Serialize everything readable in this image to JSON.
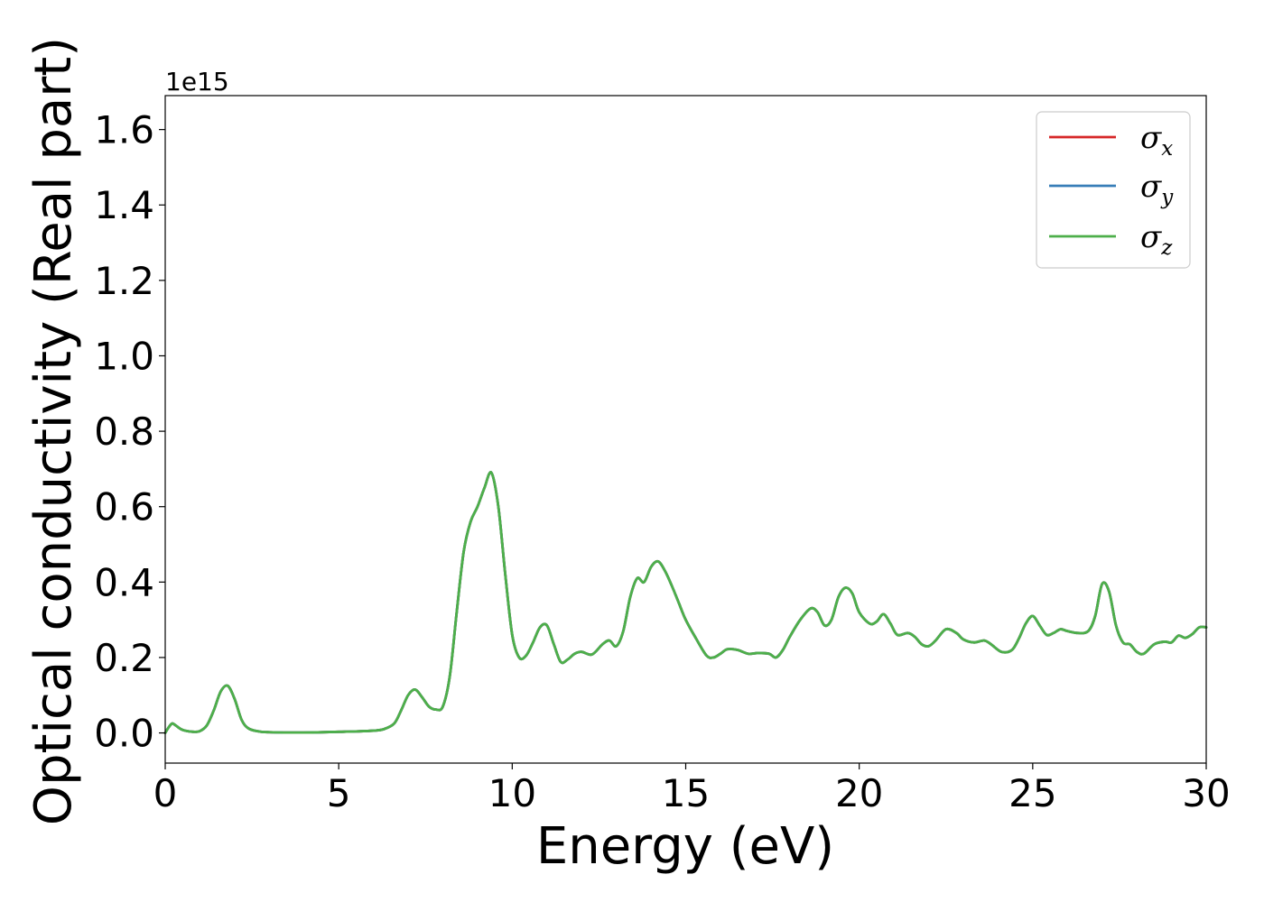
{
  "chart_data": {
    "type": "line",
    "title": "",
    "xlabel": "Energy (eV)",
    "ylabel": "Optical conductivity (Real part)",
    "y_offset_text": "1e15",
    "y_scale": 1000000000000000.0,
    "xlim": [
      0,
      30
    ],
    "ylim": [
      -0.08,
      1.69
    ],
    "xticks": [
      0,
      5,
      10,
      15,
      20,
      25,
      30
    ],
    "xtick_labels": [
      "0",
      "5",
      "10",
      "15",
      "20",
      "25",
      "30"
    ],
    "yticks": [
      0.0,
      0.2,
      0.4,
      0.6,
      0.8,
      1.0,
      1.2,
      1.4,
      1.6
    ],
    "ytick_labels": [
      "0.0",
      "0.2",
      "0.4",
      "0.6",
      "0.8",
      "1.0",
      "1.2",
      "1.4",
      "1.6"
    ],
    "grid": false,
    "legend_position": "top-right",
    "x": [
      0,
      0.1,
      0.2,
      0.3,
      0.5,
      0.8,
      1.0,
      1.2,
      1.4,
      1.6,
      1.8,
      2.0,
      2.2,
      2.4,
      2.7,
      3.0,
      4.0,
      5.0,
      5.5,
      6.0,
      6.3,
      6.6,
      6.8,
      7.0,
      7.2,
      7.4,
      7.6,
      7.8,
      8.0,
      8.2,
      8.4,
      8.6,
      8.8,
      9.0,
      9.2,
      9.4,
      9.6,
      9.8,
      10.0,
      10.2,
      10.4,
      10.6,
      10.8,
      11.0,
      11.2,
      11.4,
      11.6,
      11.8,
      12.0,
      12.3,
      12.6,
      12.8,
      13.0,
      13.2,
      13.4,
      13.6,
      13.8,
      14.0,
      14.2,
      14.4,
      14.6,
      14.8,
      15.0,
      15.3,
      15.6,
      15.8,
      16.0,
      16.2,
      16.5,
      16.8,
      17.1,
      17.4,
      17.6,
      17.8,
      18.0,
      18.3,
      18.6,
      18.8,
      19.0,
      19.2,
      19.4,
      19.6,
      19.8,
      20.0,
      20.3,
      20.5,
      20.7,
      20.9,
      21.1,
      21.4,
      21.6,
      21.8,
      22.0,
      22.2,
      22.5,
      22.8,
      23.0,
      23.3,
      23.6,
      23.8,
      24.1,
      24.4,
      24.6,
      24.8,
      25.0,
      25.2,
      25.4,
      25.6,
      25.8,
      26.0,
      26.3,
      26.6,
      26.8,
      27.0,
      27.2,
      27.4,
      27.6,
      27.8,
      28.0,
      28.2,
      28.5,
      28.8,
      29.0,
      29.2,
      29.4,
      29.6,
      29.8,
      30.0
    ],
    "series": [
      {
        "name": "σx",
        "color": "#d62728",
        "values": [
          0.0,
          0.015,
          0.025,
          0.02,
          0.008,
          0.003,
          0.005,
          0.02,
          0.06,
          0.11,
          0.125,
          0.09,
          0.035,
          0.012,
          0.004,
          0.002,
          0.001,
          0.003,
          0.004,
          0.006,
          0.01,
          0.025,
          0.06,
          0.1,
          0.115,
          0.095,
          0.07,
          0.062,
          0.07,
          0.15,
          0.32,
          0.48,
          0.56,
          0.6,
          0.65,
          0.69,
          0.6,
          0.42,
          0.26,
          0.2,
          0.205,
          0.24,
          0.28,
          0.285,
          0.235,
          0.188,
          0.195,
          0.21,
          0.215,
          0.208,
          0.235,
          0.245,
          0.23,
          0.27,
          0.36,
          0.41,
          0.4,
          0.44,
          0.455,
          0.43,
          0.39,
          0.345,
          0.3,
          0.25,
          0.205,
          0.2,
          0.21,
          0.222,
          0.22,
          0.21,
          0.212,
          0.21,
          0.2,
          0.22,
          0.255,
          0.3,
          0.33,
          0.32,
          0.285,
          0.3,
          0.36,
          0.385,
          0.37,
          0.32,
          0.29,
          0.295,
          0.315,
          0.29,
          0.26,
          0.265,
          0.255,
          0.235,
          0.23,
          0.245,
          0.275,
          0.265,
          0.248,
          0.24,
          0.245,
          0.235,
          0.215,
          0.22,
          0.25,
          0.29,
          0.31,
          0.285,
          0.26,
          0.265,
          0.275,
          0.27,
          0.265,
          0.27,
          0.31,
          0.395,
          0.375,
          0.285,
          0.24,
          0.235,
          0.215,
          0.21,
          0.235,
          0.242,
          0.24,
          0.258,
          0.252,
          0.262,
          0.28,
          0.28
        ]
      },
      {
        "name": "σy",
        "color": "#377eb8",
        "values": [
          0.0,
          0.015,
          0.025,
          0.02,
          0.008,
          0.003,
          0.005,
          0.02,
          0.06,
          0.11,
          0.125,
          0.09,
          0.035,
          0.012,
          0.004,
          0.002,
          0.001,
          0.003,
          0.004,
          0.006,
          0.01,
          0.025,
          0.06,
          0.1,
          0.115,
          0.095,
          0.07,
          0.062,
          0.07,
          0.15,
          0.32,
          0.48,
          0.56,
          0.6,
          0.65,
          0.69,
          0.6,
          0.42,
          0.26,
          0.2,
          0.205,
          0.24,
          0.28,
          0.285,
          0.235,
          0.188,
          0.195,
          0.21,
          0.215,
          0.208,
          0.235,
          0.245,
          0.23,
          0.27,
          0.36,
          0.41,
          0.4,
          0.44,
          0.455,
          0.43,
          0.39,
          0.345,
          0.3,
          0.25,
          0.205,
          0.2,
          0.21,
          0.222,
          0.22,
          0.21,
          0.212,
          0.21,
          0.2,
          0.22,
          0.255,
          0.3,
          0.33,
          0.32,
          0.285,
          0.3,
          0.36,
          0.385,
          0.37,
          0.32,
          0.29,
          0.295,
          0.315,
          0.29,
          0.26,
          0.265,
          0.255,
          0.235,
          0.23,
          0.245,
          0.275,
          0.265,
          0.248,
          0.24,
          0.245,
          0.235,
          0.215,
          0.22,
          0.25,
          0.29,
          0.31,
          0.285,
          0.26,
          0.265,
          0.275,
          0.27,
          0.265,
          0.27,
          0.31,
          0.395,
          0.375,
          0.285,
          0.24,
          0.235,
          0.215,
          0.21,
          0.235,
          0.242,
          0.24,
          0.258,
          0.252,
          0.262,
          0.28,
          0.28
        ]
      },
      {
        "name": "σz",
        "color": "#4daf4a",
        "values": [
          0.0,
          0.015,
          0.025,
          0.02,
          0.008,
          0.003,
          0.005,
          0.02,
          0.06,
          0.11,
          0.125,
          0.09,
          0.035,
          0.012,
          0.004,
          0.002,
          0.001,
          0.003,
          0.004,
          0.006,
          0.01,
          0.025,
          0.06,
          0.1,
          0.115,
          0.095,
          0.07,
          0.062,
          0.07,
          0.15,
          0.32,
          0.48,
          0.56,
          0.6,
          0.65,
          0.69,
          0.6,
          0.42,
          0.26,
          0.2,
          0.205,
          0.24,
          0.28,
          0.285,
          0.235,
          0.188,
          0.195,
          0.21,
          0.215,
          0.208,
          0.235,
          0.245,
          0.23,
          0.27,
          0.36,
          0.41,
          0.4,
          0.44,
          0.455,
          0.43,
          0.39,
          0.345,
          0.3,
          0.25,
          0.205,
          0.2,
          0.21,
          0.222,
          0.22,
          0.21,
          0.212,
          0.21,
          0.2,
          0.22,
          0.255,
          0.3,
          0.33,
          0.32,
          0.285,
          0.3,
          0.36,
          0.385,
          0.37,
          0.32,
          0.29,
          0.295,
          0.315,
          0.29,
          0.26,
          0.265,
          0.255,
          0.235,
          0.23,
          0.245,
          0.275,
          0.265,
          0.248,
          0.24,
          0.245,
          0.235,
          0.215,
          0.22,
          0.25,
          0.29,
          0.31,
          0.285,
          0.26,
          0.265,
          0.275,
          0.27,
          0.265,
          0.27,
          0.31,
          0.395,
          0.375,
          0.285,
          0.24,
          0.235,
          0.215,
          0.21,
          0.235,
          0.242,
          0.24,
          0.258,
          0.252,
          0.262,
          0.28,
          0.28
        ]
      }
    ],
    "legend": [
      {
        "symbol": "σ",
        "subscript": "x",
        "color": "#d62728"
      },
      {
        "symbol": "σ",
        "subscript": "y",
        "color": "#377eb8"
      },
      {
        "symbol": "σ",
        "subscript": "z",
        "color": "#4daf4a"
      }
    ]
  }
}
